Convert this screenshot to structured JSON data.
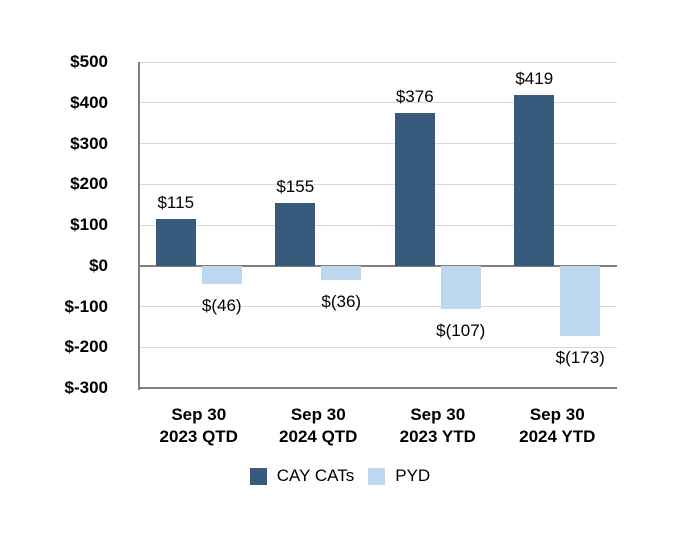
{
  "chart_data": {
    "type": "bar",
    "title": "",
    "categories": [
      {
        "line1": "Sep 30",
        "line2": "2023 QTD"
      },
      {
        "line1": "Sep 30",
        "line2": "2024 QTD"
      },
      {
        "line1": "Sep 30",
        "line2": "2023 YTD"
      },
      {
        "line1": "Sep 30",
        "line2": "2024 YTD"
      }
    ],
    "series": [
      {
        "name": "CAY CATs",
        "color": "#385a7c",
        "values": [
          115,
          155,
          376,
          419
        ],
        "labels": [
          "$115",
          "$155",
          "$376",
          "$419"
        ]
      },
      {
        "name": "PYD",
        "color": "#bdd7ee",
        "values": [
          -46,
          -36,
          -107,
          -173
        ],
        "labels": [
          "$(46)",
          "$(36)",
          "$(107)",
          "$(173)"
        ]
      }
    ],
    "y_axis": {
      "min": -300,
      "max": 500,
      "step": 100,
      "tick_labels": [
        "$500",
        "$400",
        "$300",
        "$200",
        "$100",
        "$0",
        "$-100",
        "$-200",
        "$-300"
      ]
    },
    "grid": true,
    "legend_position": "bottom",
    "colors": {
      "gridline": "#d9d9d9",
      "axis": "#808080",
      "text": "#000000",
      "background": "#ffffff"
    }
  }
}
